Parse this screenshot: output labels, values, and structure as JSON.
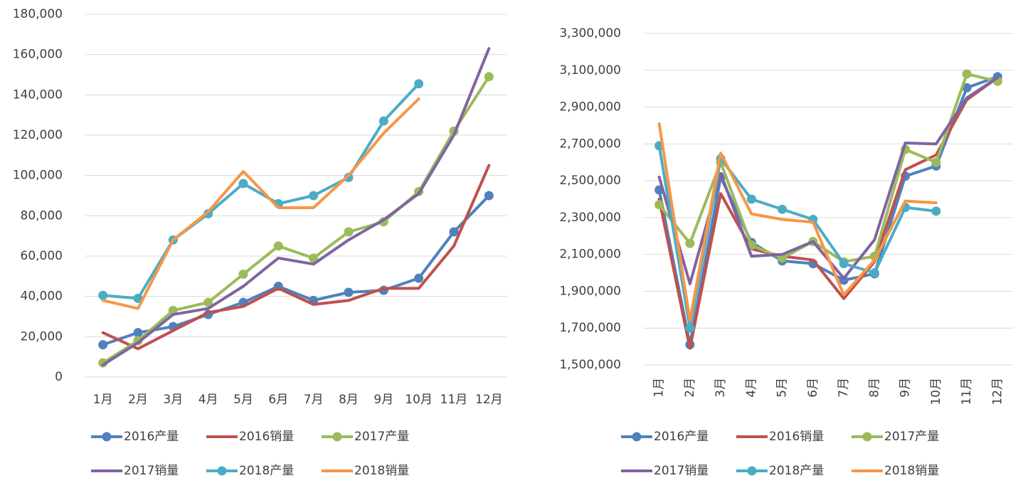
{
  "chart_data": [
    {
      "type": "line",
      "categories": [
        "1月",
        "2月",
        "3月",
        "4月",
        "5月",
        "6月",
        "7月",
        "8月",
        "9月",
        "10月",
        "11月",
        "12月"
      ],
      "ylim": [
        0,
        180000
      ],
      "yticks": [
        0,
        {
          "value": 20000,
          "label": "20,000"
        },
        {
          "value": 40000,
          "label": "40,000"
        },
        {
          "value": 60000,
          "label": "60,000"
        },
        {
          "value": 80000,
          "label": "80,000"
        },
        {
          "value": 100000,
          "label": "100,000"
        },
        {
          "value": 120000,
          "label": "120,000"
        },
        {
          "value": 140000,
          "label": "140,000"
        },
        {
          "value": 160000,
          "label": "160,000"
        },
        {
          "value": 180000,
          "label": "180,000"
        }
      ],
      "grid": true,
      "legend": "bottom",
      "series": [
        {
          "name": "2016产量",
          "color": "#4f81bd",
          "marker": true,
          "values": [
            16000,
            22000,
            25000,
            31000,
            37000,
            45000,
            38000,
            42000,
            43000,
            49000,
            72000,
            90000
          ]
        },
        {
          "name": "2016销量",
          "color": "#c0504d",
          "marker": false,
          "values": [
            22000,
            14000,
            23000,
            32000,
            35000,
            44000,
            36000,
            38000,
            44000,
            44000,
            65000,
            105000
          ]
        },
        {
          "name": "2017产量",
          "color": "#9bbb59",
          "marker": true,
          "values": [
            7000,
            18000,
            33000,
            37000,
            51000,
            65000,
            59000,
            72000,
            77000,
            92000,
            122000,
            149000
          ]
        },
        {
          "name": "2017销量",
          "color": "#8064a2",
          "marker": false,
          "values": [
            6000,
            17000,
            31000,
            34000,
            45000,
            59000,
            56000,
            68000,
            78000,
            91000,
            120000,
            163000
          ]
        },
        {
          "name": "2018产量",
          "color": "#4bacc6",
          "marker": true,
          "values": [
            40500,
            39000,
            68000,
            81000,
            96000,
            86000,
            90000,
            99000,
            127000,
            145500,
            null,
            null
          ]
        },
        {
          "name": "2018销量",
          "color": "#f79646",
          "marker": false,
          "values": [
            38000,
            34000,
            68000,
            82000,
            102000,
            84000,
            84000,
            100000,
            121000,
            138000,
            null,
            null
          ]
        }
      ]
    },
    {
      "type": "line",
      "x_label_rotation": -90,
      "categories": [
        "1月",
        "2月",
        "3月",
        "4月",
        "5月",
        "6月",
        "7月",
        "8月",
        "9月",
        "10月",
        "11月",
        "12月"
      ],
      "ylim": [
        1500000,
        3300000
      ],
      "yticks": [
        {
          "value": 1500000,
          "label": "1,500,000"
        },
        {
          "value": 1700000,
          "label": "1,700,000"
        },
        {
          "value": 1900000,
          "label": "1,900,000"
        },
        {
          "value": 2100000,
          "label": "2,100,000"
        },
        {
          "value": 2300000,
          "label": "2,300,000"
        },
        {
          "value": 2500000,
          "label": "2,500,000"
        },
        {
          "value": 2700000,
          "label": "2,700,000"
        },
        {
          "value": 2900000,
          "label": "2,900,000"
        },
        {
          "value": 3100000,
          "label": "3,100,000"
        },
        {
          "value": 3300000,
          "label": "3,300,000"
        }
      ],
      "grid": true,
      "legend": "bottom",
      "series": [
        {
          "name": "2016产量",
          "color": "#4f81bd",
          "marker": true,
          "values": [
            2450000,
            1610000,
            2520000,
            2165000,
            2065000,
            2050000,
            1960000,
            1995000,
            2525000,
            2580000,
            3005000,
            3065000
          ]
        },
        {
          "name": "2016销量",
          "color": "#c0504d",
          "marker": false,
          "values": [
            2400000,
            1590000,
            2430000,
            2130000,
            2090000,
            2070000,
            1860000,
            2060000,
            2560000,
            2640000,
            2940000,
            3060000
          ]
        },
        {
          "name": "2017产量",
          "color": "#9bbb59",
          "marker": true,
          "values": [
            2370000,
            2160000,
            2600000,
            2150000,
            2080000,
            2170000,
            2060000,
            2090000,
            2670000,
            2600000,
            3080000,
            3040000
          ]
        },
        {
          "name": "2017销量",
          "color": "#8064a2",
          "marker": false,
          "values": [
            2520000,
            1940000,
            2540000,
            2090000,
            2100000,
            2170000,
            1970000,
            2180000,
            2705000,
            2700000,
            2950000,
            3060000
          ]
        },
        {
          "name": "2018产量",
          "color": "#4bacc6",
          "marker": true,
          "values": [
            2690000,
            1700000,
            2620000,
            2400000,
            2345000,
            2290000,
            2050000,
            2000000,
            2355000,
            2335000,
            null,
            null
          ]
        },
        {
          "name": "2018销量",
          "color": "#f79646",
          "marker": false,
          "values": [
            2810000,
            1740000,
            2650000,
            2320000,
            2290000,
            2275000,
            1880000,
            2070000,
            2390000,
            2380000,
            null,
            null
          ]
        }
      ]
    }
  ]
}
